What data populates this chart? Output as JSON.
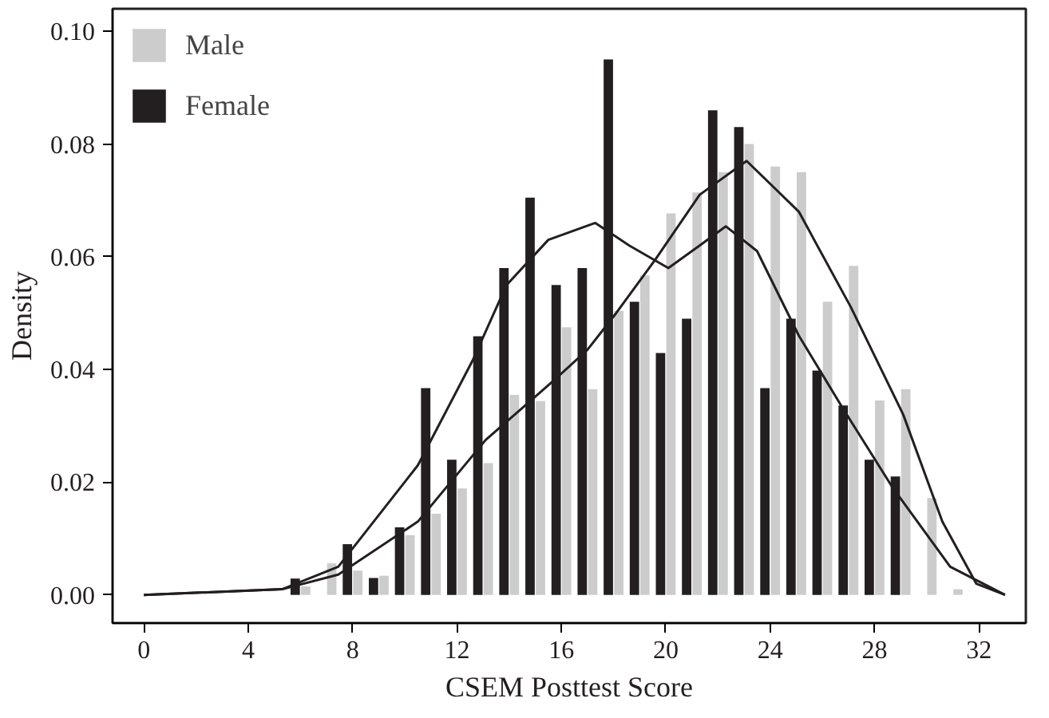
{
  "chart_data": {
    "type": "bar",
    "xlabel": "CSEM Posttest Score",
    "ylabel": "Density",
    "x": [
      6,
      7,
      8,
      9,
      10,
      11,
      12,
      13,
      14,
      15,
      16,
      17,
      18,
      19,
      20,
      21,
      22,
      23,
      24,
      25,
      26,
      27,
      28,
      29,
      30,
      31
    ],
    "series": [
      {
        "name": "Male",
        "color": "#cccccc",
        "values": [
          0.0015,
          0.0056,
          0.0043,
          0.0034,
          0.0106,
          0.0144,
          0.0189,
          0.0234,
          0.0355,
          0.0344,
          0.0475,
          0.0365,
          0.0504,
          0.0567,
          0.0677,
          0.0714,
          0.075,
          0.08,
          0.076,
          0.075,
          0.052,
          0.0584,
          0.0345,
          0.0365,
          0.0172,
          0.001
        ]
      },
      {
        "name": "Female",
        "color": "#231f20",
        "values": [
          0.0029,
          null,
          0.009,
          0.003,
          0.012,
          0.0367,
          0.024,
          0.0459,
          0.058,
          0.0705,
          0.055,
          0.058,
          0.095,
          0.052,
          0.0429,
          0.049,
          0.086,
          0.083,
          0.0367,
          0.049,
          0.0398,
          0.0336,
          0.024,
          0.021,
          null,
          null
        ]
      },
      {
        "type": "line",
        "color": "#231f20",
        "x": [
          0,
          5.3,
          7.45,
          10.5,
          12.6,
          13.9,
          15.5,
          17.3,
          18.6,
          20.1,
          21.3,
          22.3,
          23.5,
          25.1,
          26.8,
          28.7,
          30.9,
          33
        ],
        "values": [
          0,
          0.001,
          0.005,
          0.023,
          0.0416,
          0.055,
          0.063,
          0.066,
          0.062,
          0.058,
          0.062,
          0.0654,
          0.061,
          0.046,
          0.033,
          0.019,
          0.005,
          0
        ]
      },
      {
        "type": "line",
        "color": "#231f20",
        "x": [
          0,
          5.3,
          7.45,
          10.5,
          13.1,
          15.7,
          17,
          18.1,
          19.6,
          21.3,
          23.1,
          25.1,
          27.1,
          29.1,
          30.6,
          31.9,
          33
        ],
        "values": [
          0,
          0.001,
          0.0036,
          0.013,
          0.0275,
          0.038,
          0.0435,
          0.05,
          0.0595,
          0.071,
          0.077,
          0.068,
          0.051,
          0.032,
          0.013,
          0.002,
          0
        ]
      }
    ],
    "xlim": [
      -1.2,
      33.8
    ],
    "ylim": [
      -0.005,
      0.104
    ],
    "xticks": [
      0,
      4,
      8,
      12,
      16,
      20,
      24,
      28,
      32
    ],
    "yticks": [
      {
        "value": 0,
        "label": "0.00"
      },
      {
        "value": 0.02,
        "label": "0.02"
      },
      {
        "value": 0.04,
        "label": "0.04"
      },
      {
        "value": 0.06,
        "label": "0.06"
      },
      {
        "value": 0.08,
        "label": "0.08"
      },
      {
        "value": 0.1,
        "label": "0.10"
      }
    ],
    "grid": false,
    "legend": "top left"
  }
}
